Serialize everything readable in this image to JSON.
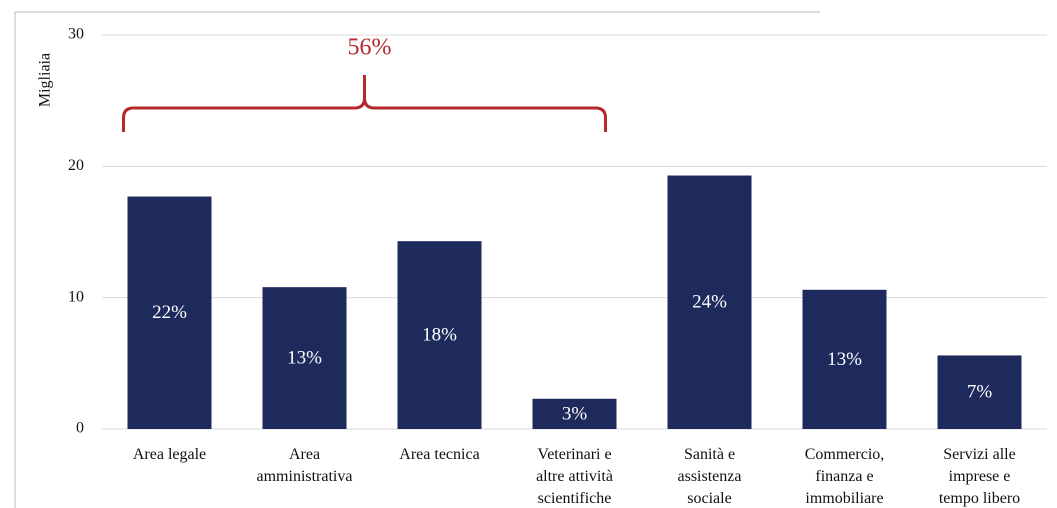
{
  "chart_data": {
    "type": "bar",
    "y_label": "Migliaia",
    "categories": [
      "Area legale",
      "Area\namministrativa",
      "Area tecnica",
      "Veterinari e\naltre attività\nscientifiche",
      "Sanità e\nassistenza\nsociale",
      "Commercio,\nfinanza e\nimmobiliare",
      "Servizi alle\nimprese e\ntempo libero"
    ],
    "values": [
      17.7,
      10.8,
      14.3,
      2.3,
      19.3,
      10.6,
      5.6
    ],
    "shares": [
      {
        "value": 22,
        "label": "22%"
      },
      {
        "value": 13,
        "label": "13%"
      },
      {
        "value": 18,
        "label": "18%"
      },
      {
        "value": 3,
        "label": "3%"
      },
      {
        "value": 24,
        "label": "24%"
      },
      {
        "value": 13,
        "label": "13%"
      },
      {
        "value": 7,
        "label": "7%"
      }
    ],
    "bracket": {
      "from": 0,
      "to": 3,
      "value": 56,
      "label": "56%",
      "color": "#b5282b"
    },
    "color": "#1f2a5c",
    "ylim": [
      0,
      30
    ],
    "yticks": [
      0,
      10,
      20,
      30
    ],
    "grid": true
  }
}
